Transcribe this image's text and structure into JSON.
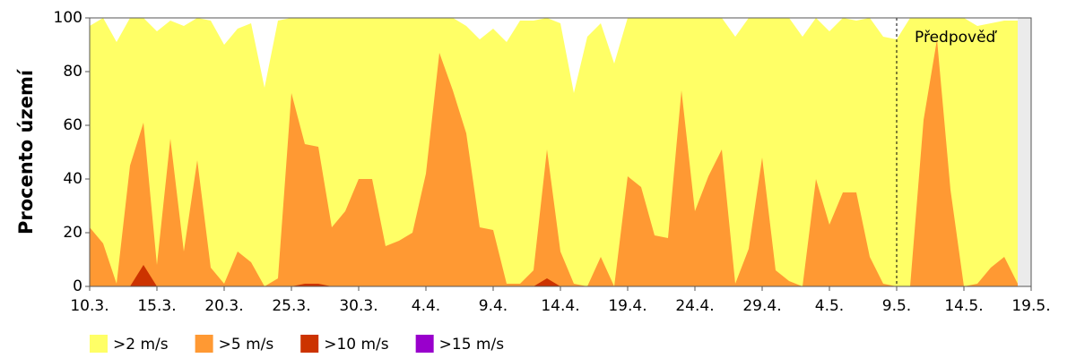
{
  "chart_data": {
    "type": "area",
    "y_label": "Procento území",
    "annotation": "Předpověď",
    "forecast_start": 60,
    "x": [
      0,
      1,
      2,
      3,
      4,
      5,
      6,
      7,
      8,
      9,
      10,
      11,
      12,
      13,
      14,
      15,
      16,
      17,
      18,
      19,
      20,
      21,
      22,
      23,
      24,
      25,
      26,
      27,
      28,
      29,
      30,
      31,
      32,
      33,
      34,
      35,
      36,
      37,
      38,
      39,
      40,
      41,
      42,
      43,
      44,
      45,
      46,
      47,
      48,
      49,
      50,
      51,
      52,
      53,
      54,
      55,
      56,
      57,
      58,
      59,
      60,
      61,
      62,
      63,
      64,
      65,
      66,
      67,
      68,
      69
    ],
    "series": [
      {
        "name": ">2 m/s",
        "color": "#ffff66",
        "values": [
          97,
          100,
          91,
          100,
          100,
          95,
          99,
          97,
          100,
          99,
          90,
          96,
          98,
          74,
          99,
          100,
          100,
          100,
          100,
          100,
          100,
          100,
          100,
          100,
          100,
          100,
          100,
          100,
          97,
          92,
          96,
          91,
          99,
          99,
          100,
          98,
          72,
          93,
          98,
          83,
          100,
          100,
          100,
          100,
          100,
          100,
          100,
          100,
          93,
          100,
          100,
          100,
          100,
          93,
          100,
          95,
          100,
          99,
          100,
          93,
          92,
          100,
          100,
          100,
          100,
          100,
          97,
          98,
          99,
          99
        ]
      },
      {
        "name": ">5 m/s",
        "color": "#ff9933",
        "values": [
          22,
          16,
          1,
          45,
          61,
          8,
          55,
          13,
          47,
          7,
          1,
          13,
          9,
          0,
          3,
          72,
          53,
          52,
          22,
          28,
          40,
          40,
          15,
          17,
          20,
          42,
          87,
          73,
          57,
          22,
          21,
          1,
          1,
          6,
          51,
          13,
          1,
          0,
          11,
          0,
          41,
          37,
          19,
          18,
          73,
          28,
          41,
          51,
          1,
          14,
          48,
          6,
          2,
          0,
          40,
          23,
          35,
          35,
          11,
          1,
          0,
          0,
          62,
          92,
          36,
          0,
          1,
          7,
          11,
          1
        ]
      },
      {
        "name": ">10 m/s",
        "color": "#cc3300",
        "values": [
          0,
          0,
          0,
          0,
          8,
          0,
          0,
          0,
          0,
          0,
          0,
          0,
          0,
          0,
          0,
          0,
          1,
          1,
          0,
          0,
          0,
          0,
          0,
          0,
          0,
          0,
          0,
          0,
          0,
          0,
          0,
          0,
          0,
          0,
          3,
          0,
          0,
          0,
          0,
          0,
          0,
          0,
          0,
          0,
          0,
          0,
          0,
          0,
          0,
          0,
          0,
          0,
          0,
          0,
          0,
          0,
          0,
          0,
          0,
          0,
          0,
          0,
          0,
          0,
          0,
          0,
          0,
          0,
          0,
          0
        ]
      },
      {
        "name": ">15 m/s",
        "color": "#9900cc",
        "values": [
          0,
          0,
          0,
          0,
          0,
          0,
          0,
          0,
          0,
          0,
          0,
          0,
          0,
          0,
          0,
          0,
          0,
          0,
          0,
          0,
          0,
          0,
          0,
          0,
          0,
          0,
          0,
          0,
          0,
          0,
          0,
          0,
          0,
          0,
          0,
          0,
          0,
          0,
          0,
          0,
          0,
          0,
          0,
          0,
          0,
          0,
          0,
          0,
          0,
          0,
          0,
          0,
          0,
          0,
          0,
          0,
          0,
          0,
          0,
          0,
          0,
          0,
          0,
          0,
          0,
          0,
          0,
          0,
          0,
          0
        ]
      }
    ],
    "xlim": [
      0,
      70
    ],
    "xticks": [
      {
        "value": 0,
        "label": "10.3."
      },
      {
        "value": 5,
        "label": "15.3."
      },
      {
        "value": 10,
        "label": "20.3."
      },
      {
        "value": 15,
        "label": "25.3."
      },
      {
        "value": 20,
        "label": "30.3."
      },
      {
        "value": 25,
        "label": "4.4."
      },
      {
        "value": 30,
        "label": "9.4."
      },
      {
        "value": 35,
        "label": "14.4."
      },
      {
        "value": 40,
        "label": "19.4."
      },
      {
        "value": 45,
        "label": "24.4."
      },
      {
        "value": 50,
        "label": "29.4."
      },
      {
        "value": 55,
        "label": "4.5."
      },
      {
        "value": 60,
        "label": "9.5."
      },
      {
        "value": 65,
        "label": "14.5."
      },
      {
        "value": 70,
        "label": "19.5."
      }
    ],
    "ylim": [
      0,
      100
    ],
    "yticks": [
      0,
      20,
      40,
      60,
      80,
      100
    ],
    "grid": false
  }
}
